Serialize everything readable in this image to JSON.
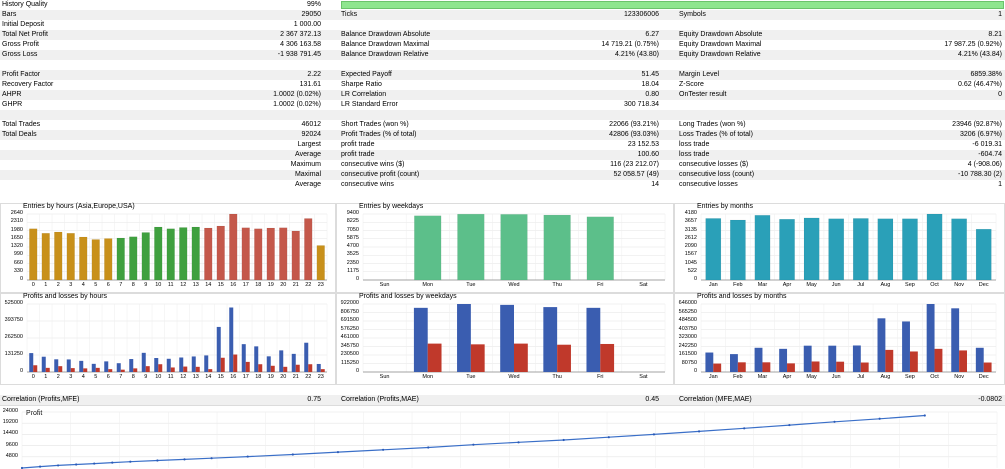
{
  "summary": {
    "history_quality_label": "History Quality",
    "history_quality_value": "99%",
    "history_quality_fill": 0.99,
    "rows": [
      {
        "shade": true,
        "c": [
          [
            "Bars",
            "29050"
          ],
          [
            "Ticks",
            "123306006"
          ],
          [
            "Symbols",
            "1"
          ]
        ]
      },
      {
        "shade": false,
        "c": [
          [
            "Initial Deposit",
            "1 000.00"
          ],
          [
            "",
            ""
          ],
          [
            "",
            ""
          ]
        ]
      },
      {
        "shade": true,
        "c": [
          [
            "Total Net Profit",
            "2 367 372.13"
          ],
          [
            "Balance Drawdown Absolute",
            "6.27"
          ],
          [
            "Equity Drawdown Absolute",
            "8.21"
          ]
        ]
      },
      {
        "shade": false,
        "c": [
          [
            "Gross Profit",
            "4 306 163.58"
          ],
          [
            "Balance Drawdown Maximal",
            "14 719.21 (0.75%)"
          ],
          [
            "Equity Drawdown Maximal",
            "17 987.25 (0.92%)"
          ]
        ]
      },
      {
        "shade": true,
        "c": [
          [
            "Gross Loss",
            "-1 938 791.45"
          ],
          [
            "Balance Drawdown Relative",
            "4.21% (43.80)"
          ],
          [
            "Equity Drawdown Relative",
            "4.21% (43.84)"
          ]
        ]
      },
      {
        "shade": false,
        "c": [
          [
            "",
            ""
          ],
          [
            "",
            ""
          ],
          [
            "",
            ""
          ]
        ]
      },
      {
        "shade": true,
        "c": [
          [
            "Profit Factor",
            "2.22"
          ],
          [
            "Expected Payoff",
            "51.45"
          ],
          [
            "Margin Level",
            "6859.38%"
          ]
        ]
      },
      {
        "shade": false,
        "c": [
          [
            "Recovery Factor",
            "131.61"
          ],
          [
            "Sharpe Ratio",
            "18.04"
          ],
          [
            "Z-Score",
            "0.62 (46.47%)"
          ]
        ]
      },
      {
        "shade": true,
        "c": [
          [
            "AHPR",
            "1.0002 (0.02%)"
          ],
          [
            "LR Correlation",
            "0.80"
          ],
          [
            "OnTester result",
            "0"
          ]
        ]
      },
      {
        "shade": false,
        "c": [
          [
            "GHPR",
            "1.0002 (0.02%)"
          ],
          [
            "LR Standard Error",
            "300 718.34"
          ],
          [
            "",
            ""
          ]
        ]
      },
      {
        "shade": true,
        "c": [
          [
            "",
            ""
          ],
          [
            "",
            ""
          ],
          [
            "",
            ""
          ]
        ]
      },
      {
        "shade": false,
        "c": [
          [
            "Total Trades",
            "46012"
          ],
          [
            "Short Trades (won %)",
            "22066 (93.21%)"
          ],
          [
            "Long Trades (won %)",
            "23946 (92.87%)"
          ]
        ]
      },
      {
        "shade": true,
        "c": [
          [
            "Total Deals",
            "92024"
          ],
          [
            "Profit Trades (% of total)",
            "42806 (93.03%)"
          ],
          [
            "Loss Trades (% of total)",
            "3206 (6.97%)"
          ]
        ]
      },
      {
        "shade": false,
        "c": [
          [
            "Largest",
            ""
          ],
          [
            "profit trade",
            "23 152.53"
          ],
          [
            "loss trade",
            "-6 019.31"
          ]
        ],
        "sub": true
      },
      {
        "shade": true,
        "c": [
          [
            "Average",
            ""
          ],
          [
            "profit trade",
            "100.60"
          ],
          [
            "loss trade",
            "-604.74"
          ]
        ],
        "sub": true
      },
      {
        "shade": false,
        "c": [
          [
            "Maximum",
            ""
          ],
          [
            "consecutive wins ($)",
            "116 (23 212.07)"
          ],
          [
            "consecutive losses ($)",
            "4 (-908.06)"
          ]
        ],
        "sub": true
      },
      {
        "shade": true,
        "c": [
          [
            "Maximal",
            ""
          ],
          [
            "consecutive profit (count)",
            "52 058.57 (49)"
          ],
          [
            "consecutive loss (count)",
            "-10 788.30 (2)"
          ]
        ],
        "sub": true
      },
      {
        "shade": false,
        "c": [
          [
            "Average",
            ""
          ],
          [
            "consecutive wins",
            "14"
          ],
          [
            "consecutive losses",
            "1"
          ]
        ],
        "sub": true
      }
    ],
    "correlation": [
      [
        "Correlation (Profits,MFE)",
        "0.75"
      ],
      [
        "Correlation (Profits,MAE)",
        "0.45"
      ],
      [
        "Correlation (MFE,MAE)",
        "-0.0802"
      ]
    ]
  },
  "chart_data": [
    {
      "type": "bar",
      "title": "Entries by hours (Asia,Europe,USA)",
      "categories": [
        "0",
        "1",
        "2",
        "3",
        "4",
        "5",
        "6",
        "7",
        "8",
        "9",
        "10",
        "11",
        "12",
        "13",
        "14",
        "15",
        "16",
        "17",
        "18",
        "19",
        "20",
        "21",
        "22",
        "23"
      ],
      "values": [
        2050,
        1870,
        1920,
        1870,
        1720,
        1620,
        1660,
        1680,
        1730,
        1900,
        2120,
        2050,
        2100,
        2120,
        2080,
        2160,
        2640,
        2090,
        2050,
        2080,
        2090,
        1960,
        2460,
        1380
      ],
      "colors": [
        "#c8901a",
        "#c8901a",
        "#c8901a",
        "#c8901a",
        "#c8901a",
        "#c8901a",
        "#c8901a",
        "#3fa03f",
        "#3fa03f",
        "#3fa03f",
        "#3fa03f",
        "#3fa03f",
        "#3fa03f",
        "#3fa03f",
        "#c4584a",
        "#c4584a",
        "#c4584a",
        "#c4584a",
        "#c4584a",
        "#c4584a",
        "#c4584a",
        "#c4584a",
        "#c4584a",
        "#c8901a"
      ],
      "yticks": [
        "2640",
        "2310",
        "1980",
        "1650",
        "1320",
        "990",
        "660",
        "330",
        "0"
      ],
      "ylim": [
        0,
        2640
      ]
    },
    {
      "type": "bar",
      "title": "Entries by weekdays",
      "categories": [
        "Sun",
        "Mon",
        "Tue",
        "Wed",
        "Thu",
        "Fri",
        "Sat"
      ],
      "values": [
        0,
        9150,
        9380,
        9350,
        9250,
        9000,
        0
      ],
      "colors": [
        "#5cbf8a",
        "#5cbf8a",
        "#5cbf8a",
        "#5cbf8a",
        "#5cbf8a",
        "#5cbf8a",
        "#5cbf8a"
      ],
      "yticks": [
        "9400",
        "8225",
        "7050",
        "5875",
        "4700",
        "3525",
        "2350",
        "1175",
        "0"
      ],
      "ylim": [
        0,
        9400
      ]
    },
    {
      "type": "bar",
      "title": "Entries by months",
      "categories": [
        "Jan",
        "Feb",
        "Mar",
        "Apr",
        "May",
        "Jun",
        "Jul",
        "Aug",
        "Sep",
        "Oct",
        "Nov",
        "Dec"
      ],
      "values": [
        3900,
        3800,
        4100,
        3850,
        3930,
        3880,
        3900,
        3880,
        3880,
        4180,
        3880,
        3220
      ],
      "colors": [
        "#2aa0b8",
        "#2aa0b8",
        "#2aa0b8",
        "#2aa0b8",
        "#2aa0b8",
        "#2aa0b8",
        "#2aa0b8",
        "#2aa0b8",
        "#2aa0b8",
        "#2aa0b8",
        "#2aa0b8",
        "#2aa0b8"
      ],
      "yticks": [
        "4180",
        "3657",
        "3135",
        "2612",
        "2090",
        "1567",
        "1045",
        "522",
        "0"
      ],
      "ylim": [
        0,
        4180
      ]
    },
    {
      "type": "bar",
      "title": "Profits and losses by hours",
      "categories": [
        "0",
        "1",
        "2",
        "3",
        "4",
        "5",
        "6",
        "7",
        "8",
        "9",
        "10",
        "11",
        "12",
        "13",
        "14",
        "15",
        "16",
        "17",
        "18",
        "19",
        "20",
        "21",
        "22",
        "23"
      ],
      "series": [
        {
          "name": "Profit",
          "color": "#3a5db0",
          "values": [
            146000,
            118000,
            98000,
            97000,
            86000,
            63000,
            82000,
            68000,
            100000,
            148000,
            108000,
            102000,
            112000,
            120000,
            128000,
            348000,
            498000,
            215000,
            198000,
            121000,
            167000,
            140000,
            226000,
            62000
          ]
        },
        {
          "name": "Loss",
          "color": "#c0392b",
          "values": [
            52000,
            32000,
            45000,
            30000,
            28000,
            32000,
            22000,
            18000,
            28000,
            45000,
            60000,
            35000,
            42000,
            40000,
            22000,
            110000,
            135000,
            78000,
            60000,
            48000,
            40000,
            56000,
            60000,
            22000
          ]
        }
      ],
      "yticks": [
        "525000",
        "393750",
        "262500",
        "131250",
        "0"
      ],
      "ylim": [
        0,
        525000
      ]
    },
    {
      "type": "bar",
      "title": "Profits and losses by weekdays",
      "categories": [
        "Sun",
        "Mon",
        "Tue",
        "Wed",
        "Thu",
        "Fri",
        "Sat"
      ],
      "series": [
        {
          "name": "Profit",
          "color": "#3a5db0",
          "values": [
            0,
            870000,
            922000,
            910000,
            880000,
            870000,
            0
          ]
        },
        {
          "name": "Loss",
          "color": "#c0392b",
          "values": [
            0,
            385000,
            375000,
            385000,
            370000,
            380000,
            0
          ]
        }
      ],
      "yticks": [
        "922000",
        "806750",
        "691500",
        "576250",
        "461000",
        "345750",
        "230500",
        "115250",
        "0"
      ],
      "ylim": [
        0,
        922000
      ]
    },
    {
      "type": "bar",
      "title": "Profits and losses by months",
      "categories": [
        "Jan",
        "Feb",
        "Mar",
        "Apr",
        "May",
        "Jun",
        "Jul",
        "Aug",
        "Sep",
        "Oct",
        "Nov",
        "Dec"
      ],
      "series": [
        {
          "name": "Profit",
          "color": "#3a5db0",
          "values": [
            185000,
            170000,
            230000,
            220000,
            250000,
            250000,
            252000,
            510000,
            480000,
            646000,
            605000,
            230000
          ]
        },
        {
          "name": "Loss",
          "color": "#c0392b",
          "values": [
            80000,
            92000,
            92000,
            82000,
            100000,
            98000,
            90000,
            210000,
            195000,
            220000,
            205000,
            90000
          ]
        }
      ],
      "yticks": [
        "646000",
        "565250",
        "484500",
        "403750",
        "323000",
        "242250",
        "161500",
        "80750",
        "0"
      ],
      "ylim": [
        0,
        646000
      ]
    },
    {
      "type": "line",
      "title": "Profit",
      "yticks": [
        "24000",
        "19200",
        "14400",
        "9600",
        "4800"
      ],
      "ylim": [
        0,
        24000
      ],
      "x": [
        0,
        2,
        4,
        6,
        8,
        10,
        12,
        15,
        18,
        21,
        25,
        30,
        35,
        40,
        45,
        50,
        55,
        60,
        65,
        70,
        75,
        80,
        85,
        90,
        95,
        100
      ],
      "y": [
        0,
        600,
        1100,
        1500,
        1900,
        2300,
        2700,
        3200,
        3700,
        4200,
        4900,
        5800,
        6800,
        7800,
        8800,
        10000,
        11000,
        12000,
        13200,
        14400,
        15700,
        17000,
        18400,
        19800,
        21100,
        22500
      ]
    }
  ]
}
